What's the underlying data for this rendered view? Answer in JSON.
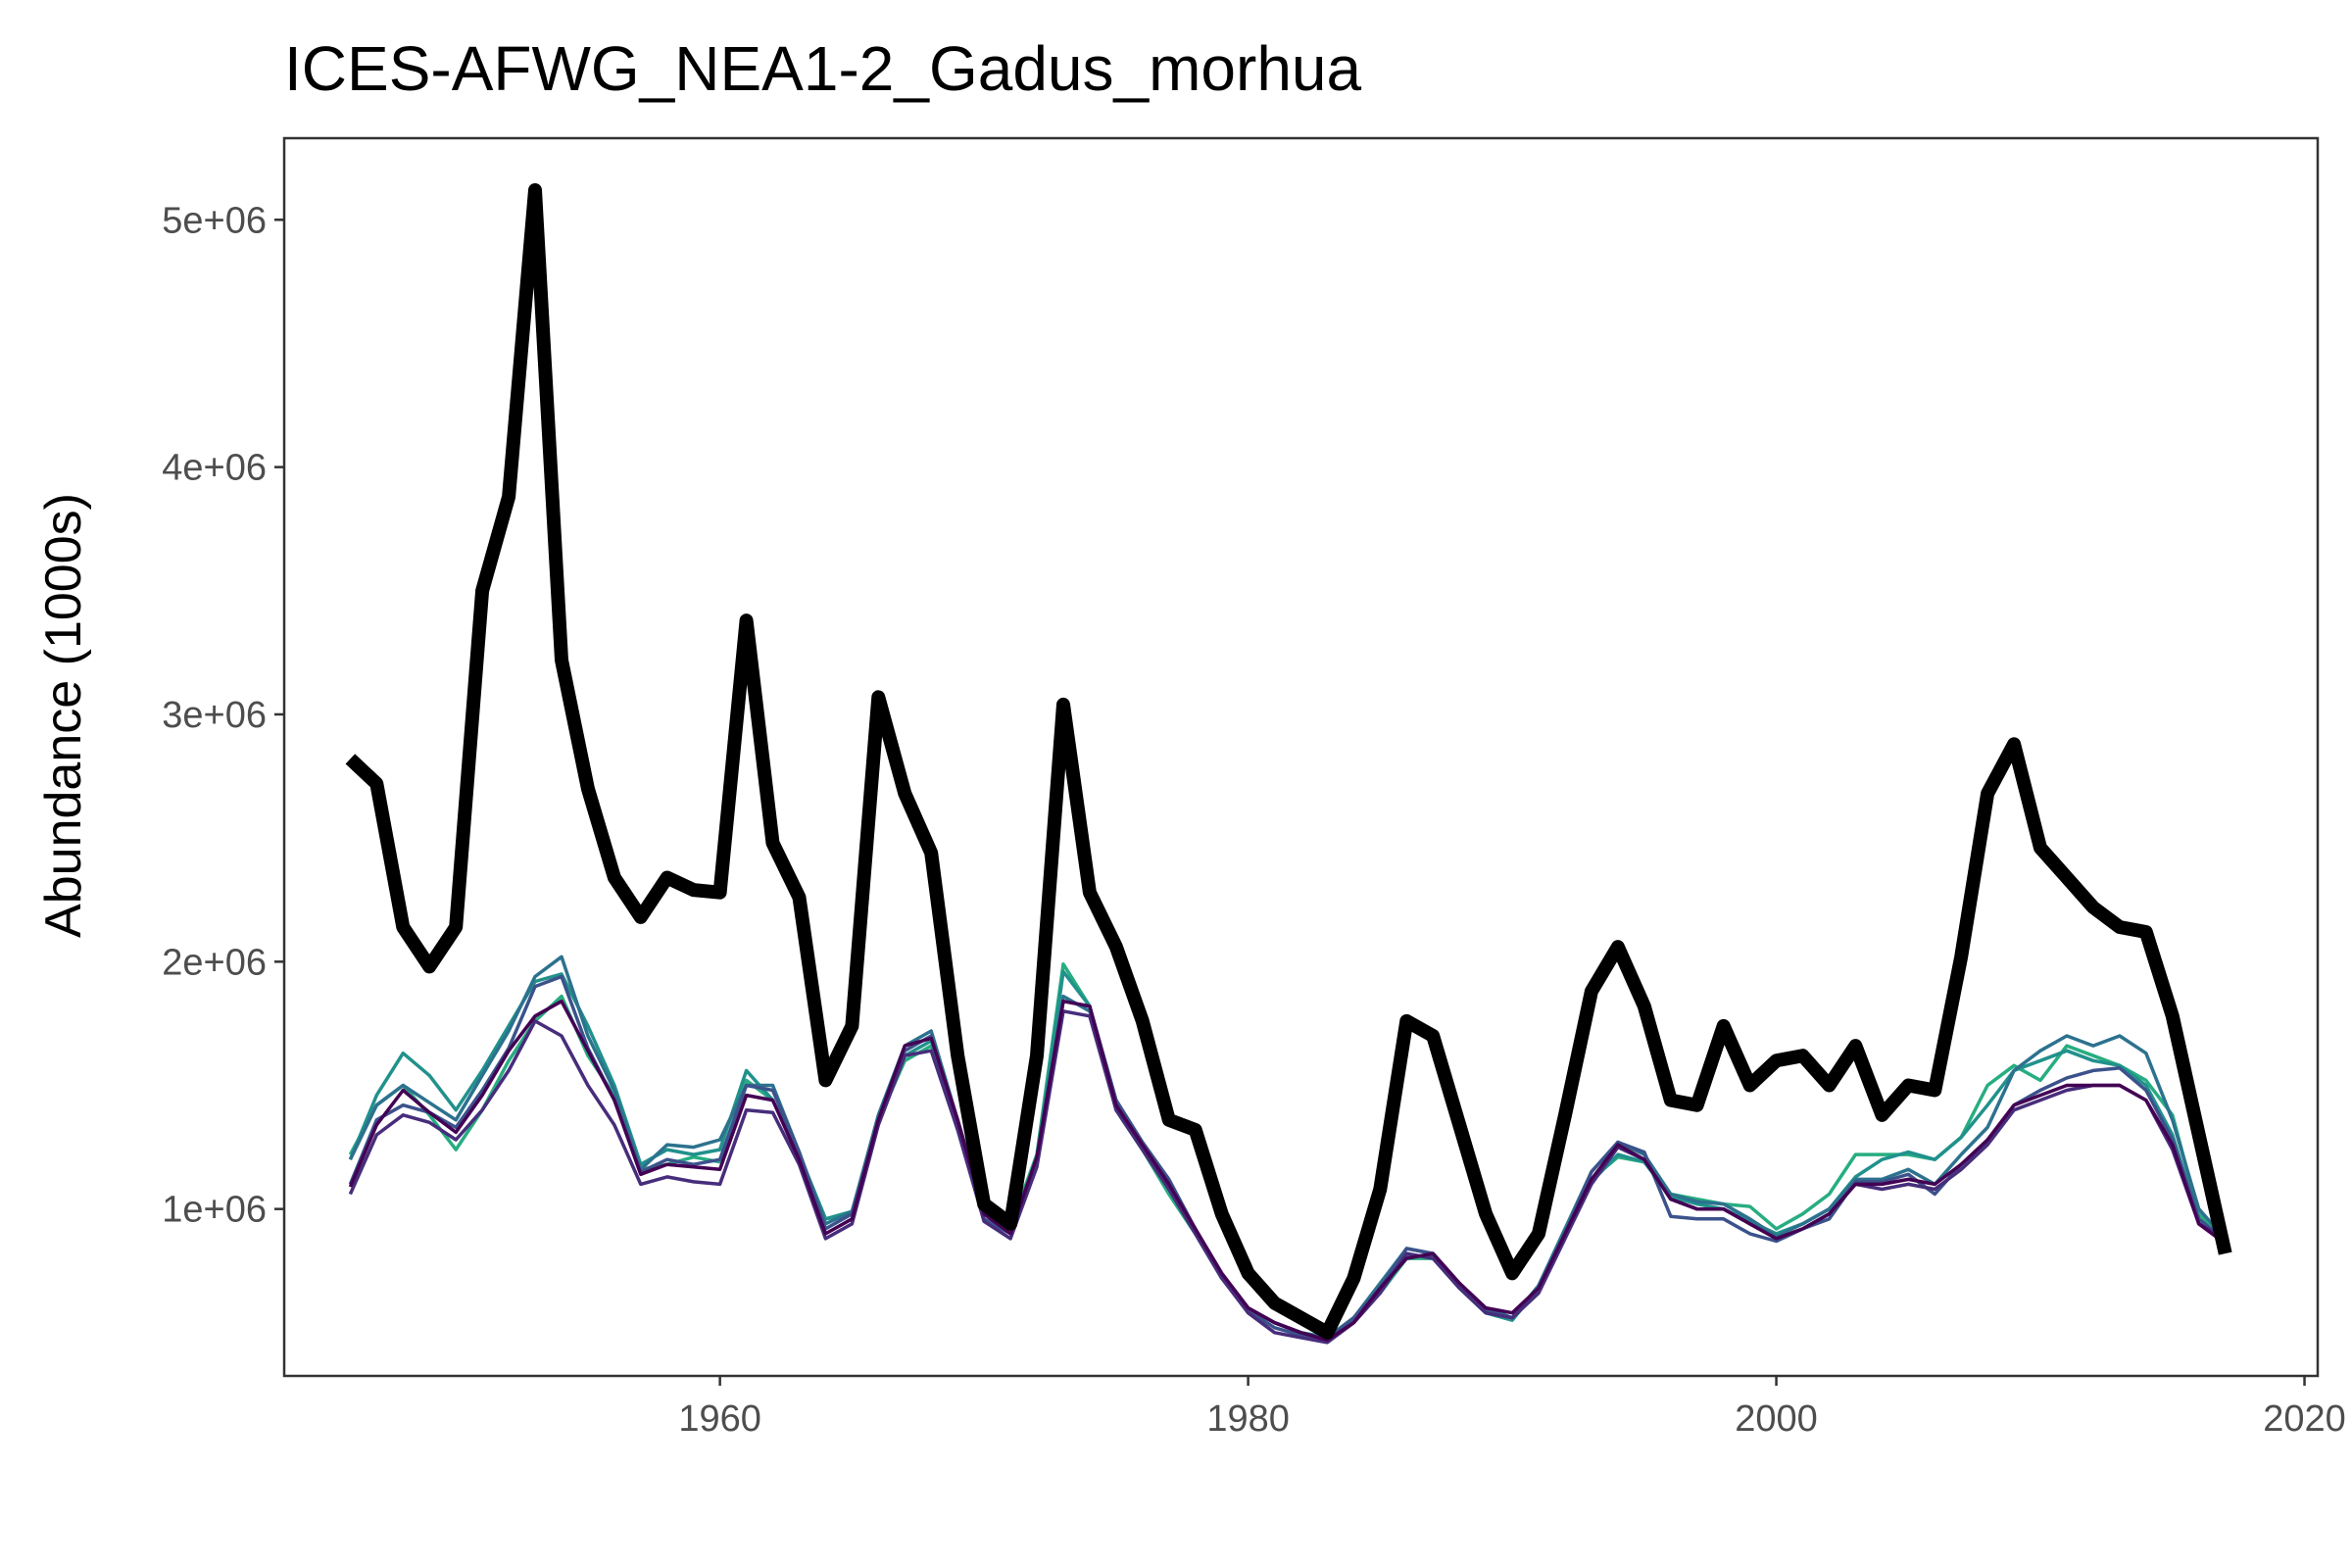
{
  "chart_data": {
    "type": "line",
    "title": "ICES-AFWG_NEA1-2_Gadus_morhua",
    "xlabel": "",
    "ylabel": "Abundance (1000s)",
    "xlim": [
      1943.5,
      2020.5
    ],
    "ylim": [
      325000,
      5330000
    ],
    "x_ticks": [
      1960,
      1980,
      2000,
      2020
    ],
    "x_tick_labels": [
      "1960",
      "1980",
      "2000",
      "2020"
    ],
    "y_ticks": [
      1000000,
      2000000,
      3000000,
      4000000,
      5000000
    ],
    "y_tick_labels": [
      "1e+06",
      "2e+06",
      "3e+06",
      "4e+06",
      "5e+06"
    ],
    "grid": false,
    "x": [
      1946,
      1947,
      1948,
      1949,
      1950,
      1951,
      1952,
      1953,
      1954,
      1955,
      1956,
      1957,
      1958,
      1959,
      1960,
      1961,
      1962,
      1963,
      1964,
      1965,
      1966,
      1967,
      1968,
      1969,
      1970,
      1971,
      1972,
      1973,
      1974,
      1975,
      1976,
      1977,
      1978,
      1979,
      1980,
      1981,
      1982,
      1983,
      1984,
      1985,
      1986,
      1987,
      1988,
      1989,
      1990,
      1991,
      1992,
      1993,
      1994,
      1995,
      1996,
      1997,
      1998,
      1999,
      2000,
      2001,
      2002,
      2003,
      2004,
      2005,
      2006,
      2007,
      2008,
      2009,
      2010,
      2011,
      2012,
      2013,
      2014,
      2015,
      2016,
      2017
    ],
    "series": [
      {
        "color": "#000000",
        "width": 14,
        "values": [
          2820000,
          2720000,
          2140000,
          1980000,
          2140000,
          3500000,
          3880000,
          5120000,
          3220000,
          2700000,
          2340000,
          2180000,
          2340000,
          2290000,
          2280000,
          3380000,
          2480000,
          2260000,
          1520000,
          1740000,
          3070000,
          2680000,
          2440000,
          1620000,
          1020000,
          940000,
          1620000,
          3040000,
          2280000,
          2060000,
          1760000,
          1360000,
          1320000,
          980000,
          740000,
          620000,
          560000,
          500000,
          720000,
          1080000,
          1760000,
          1700000,
          1340000,
          980000,
          740000,
          900000,
          1380000,
          1880000,
          2060000,
          1820000,
          1440000,
          1420000,
          1740000,
          1500000,
          1600000,
          1620000,
          1500000,
          1660000,
          1380000,
          1500000,
          1480000,
          2020000,
          2680000,
          2880000,
          2460000,
          2340000,
          2220000,
          2140000,
          2120000,
          1780000,
          1300000,
          820000
        ]
      },
      {
        "color": "#440154",
        "width": 3.5,
        "values": [
          1090000,
          1340000,
          1480000,
          1390000,
          1310000,
          1460000,
          1640000,
          1780000,
          1840000,
          1640000,
          1440000,
          1140000,
          1180000,
          1170000,
          1160000,
          1460000,
          1440000,
          1200000,
          900000,
          960000,
          1360000,
          1660000,
          1690000,
          1360000,
          980000,
          900000,
          1210000,
          1840000,
          1820000,
          1420000,
          1260000,
          1100000,
          920000,
          740000,
          600000,
          540000,
          500000,
          470000,
          540000,
          680000,
          800000,
          820000,
          700000,
          600000,
          580000,
          680000,
          900000,
          1120000,
          1260000,
          1200000,
          1040000,
          1000000,
          1000000,
          940000,
          880000,
          920000,
          980000,
          1100000,
          1100000,
          1120000,
          1100000,
          1180000,
          1280000,
          1420000,
          1460000,
          1500000,
          1500000,
          1500000,
          1440000,
          1260000,
          940000,
          860000
        ]
      },
      {
        "color": "#472d7b",
        "width": 3.5,
        "values": [
          1060000,
          1300000,
          1380000,
          1350000,
          1280000,
          1400000,
          1560000,
          1760000,
          1700000,
          1500000,
          1340000,
          1100000,
          1130000,
          1110000,
          1100000,
          1400000,
          1390000,
          1180000,
          880000,
          940000,
          1340000,
          1620000,
          1640000,
          1320000,
          950000,
          880000,
          1170000,
          1800000,
          1780000,
          1400000,
          1240000,
          1080000,
          900000,
          720000,
          580000,
          500000,
          480000,
          460000,
          540000,
          660000,
          820000,
          800000,
          680000,
          580000,
          560000,
          660000,
          880000,
          1100000,
          1250000,
          1200000,
          1040000,
          1000000,
          1000000,
          940000,
          880000,
          920000,
          980000,
          1100000,
          1080000,
          1100000,
          1080000,
          1160000,
          1260000,
          1400000,
          1440000,
          1480000,
          1500000,
          1500000,
          1440000,
          1240000,
          940000,
          880000
        ]
      },
      {
        "color": "#3b528b",
        "width": 3.5,
        "values": [
          1100000,
          1360000,
          1420000,
          1390000,
          1330000,
          1480000,
          1650000,
          1900000,
          1940000,
          1650000,
          1440000,
          1150000,
          1200000,
          1180000,
          1200000,
          1500000,
          1480000,
          1230000,
          920000,
          980000,
          1360000,
          1640000,
          1700000,
          1340000,
          960000,
          900000,
          1200000,
          1840000,
          1820000,
          1440000,
          1270000,
          1120000,
          920000,
          730000,
          590000,
          520000,
          490000,
          470000,
          560000,
          680000,
          840000,
          820000,
          700000,
          590000,
          560000,
          680000,
          900000,
          1150000,
          1270000,
          1230000,
          970000,
          960000,
          960000,
          900000,
          870000,
          920000,
          960000,
          1110000,
          1110000,
          1140000,
          1060000,
          1180000,
          1270000,
          1420000,
          1480000,
          1530000,
          1560000,
          1570000,
          1480000,
          1280000,
          960000,
          870000
        ]
      },
      {
        "color": "#2c728e",
        "width": 3.5,
        "values": [
          1200000,
          1420000,
          1500000,
          1430000,
          1360000,
          1540000,
          1720000,
          1940000,
          2020000,
          1700000,
          1480000,
          1160000,
          1260000,
          1250000,
          1280000,
          1500000,
          1500000,
          1230000,
          940000,
          990000,
          1380000,
          1660000,
          1720000,
          1360000,
          990000,
          920000,
          1200000,
          1860000,
          1800000,
          1420000,
          1250000,
          1080000,
          920000,
          740000,
          600000,
          540000,
          500000,
          480000,
          560000,
          700000,
          840000,
          820000,
          700000,
          600000,
          560000,
          690000,
          920000,
          1150000,
          1270000,
          1220000,
          1060000,
          1030000,
          1020000,
          960000,
          890000,
          940000,
          1000000,
          1120000,
          1120000,
          1160000,
          1100000,
          1220000,
          1330000,
          1560000,
          1640000,
          1700000,
          1660000,
          1700000,
          1630000,
          1360000,
          1000000,
          880000
        ]
      },
      {
        "color": "#21918c",
        "width": 3.5,
        "values": [
          1200000,
          1460000,
          1630000,
          1540000,
          1400000,
          1560000,
          1740000,
          1920000,
          1950000,
          1740000,
          1500000,
          1180000,
          1240000,
          1220000,
          1240000,
          1560000,
          1440000,
          1220000,
          960000,
          990000,
          1360000,
          1620000,
          1680000,
          1360000,
          1000000,
          930000,
          1200000,
          1960000,
          1820000,
          1400000,
          1240000,
          1080000,
          910000,
          730000,
          600000,
          540000,
          500000,
          480000,
          550000,
          680000,
          810000,
          810000,
          680000,
          580000,
          550000,
          680000,
          900000,
          1110000,
          1220000,
          1190000,
          1050000,
          1020000,
          1000000,
          950000,
          900000,
          940000,
          1000000,
          1130000,
          1200000,
          1230000,
          1200000,
          1290000,
          1420000,
          1560000,
          1600000,
          1640000,
          1600000,
          1580000,
          1500000,
          1300000,
          960000,
          880000
        ]
      },
      {
        "color": "#27ad81",
        "width": 3.5,
        "values": [
          1220000,
          1420000,
          1500000,
          1380000,
          1240000,
          1400000,
          1600000,
          1760000,
          1860000,
          1620000,
          1460000,
          1160000,
          1180000,
          1210000,
          1190000,
          1520000,
          1440000,
          1220000,
          960000,
          980000,
          1360000,
          1600000,
          1660000,
          1360000,
          1000000,
          930000,
          1220000,
          1990000,
          1820000,
          1400000,
          1240000,
          1060000,
          900000,
          720000,
          600000,
          540000,
          500000,
          480000,
          560000,
          660000,
          800000,
          800000,
          690000,
          580000,
          560000,
          690000,
          920000,
          1120000,
          1210000,
          1190000,
          1060000,
          1040000,
          1020000,
          1010000,
          920000,
          980000,
          1060000,
          1220000,
          1220000,
          1220000,
          1200000,
          1290000,
          1500000,
          1580000,
          1520000,
          1660000,
          1620000,
          1580000,
          1520000,
          1380000,
          980000,
          880000
        ]
      }
    ]
  }
}
